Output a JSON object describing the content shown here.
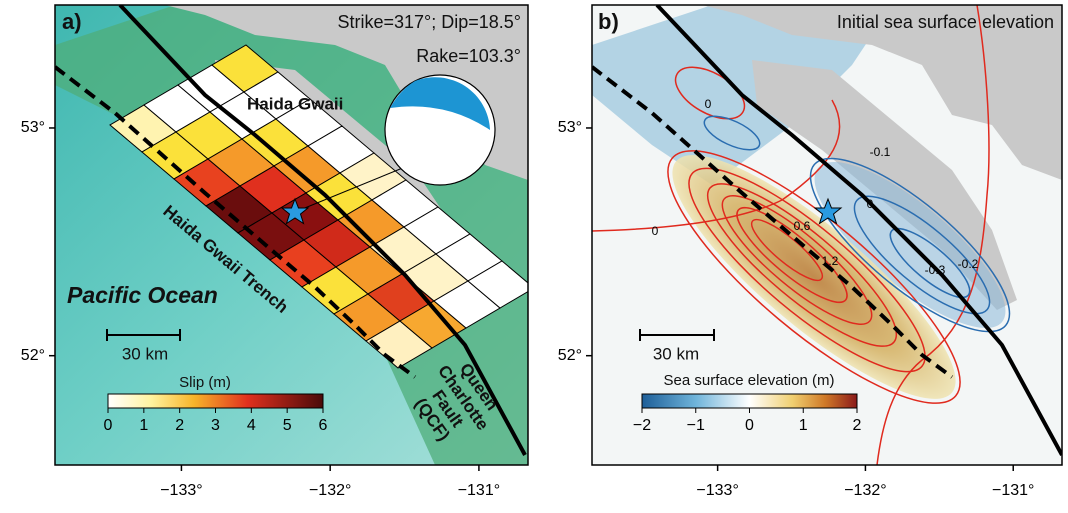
{
  "panels": [
    {
      "label": "a)",
      "annotations": [
        "Strike=317°; Dip=18.5°",
        "Rake=103.3°"
      ],
      "places": [
        "Haida Gwaii",
        "Haida Gwaii Trench",
        "Pacific Ocean"
      ],
      "fault_label": [
        "Queen",
        "Charlotte",
        "Fault",
        "(QCF)"
      ],
      "scale_bar": "30 km",
      "colorbar": {
        "title": "Slip (m)",
        "range": [
          0,
          6
        ],
        "ticks": [
          0,
          1,
          2,
          3,
          4,
          5,
          6
        ]
      }
    },
    {
      "label": "b)",
      "title": "Initial sea surface elevation",
      "scale_bar": "30 km",
      "colorbar": {
        "title": "Sea surface elevation (m)",
        "range": [
          -2,
          2
        ],
        "ticks": [
          {
            "value": -2,
            "label": "−2"
          },
          {
            "value": -1,
            "label": "−1"
          },
          0,
          1,
          2
        ]
      },
      "contour_labels": [
        "0",
        "0",
        "0",
        "-0.1",
        "0.6",
        "1.2",
        "-0.3",
        "-0.2"
      ]
    }
  ],
  "axes": {
    "lonlim": [
      -133.85,
      -130.67
    ],
    "latlim": [
      51.52,
      53.54
    ],
    "xticks": [
      {
        "value": -133,
        "label": "−133°"
      },
      {
        "value": -132,
        "label": "−132°"
      },
      {
        "value": -131,
        "label": "−131°"
      }
    ],
    "yticks": [
      {
        "value": 52,
        "label": "52°"
      },
      {
        "value": 53,
        "label": "53°"
      }
    ]
  }
}
